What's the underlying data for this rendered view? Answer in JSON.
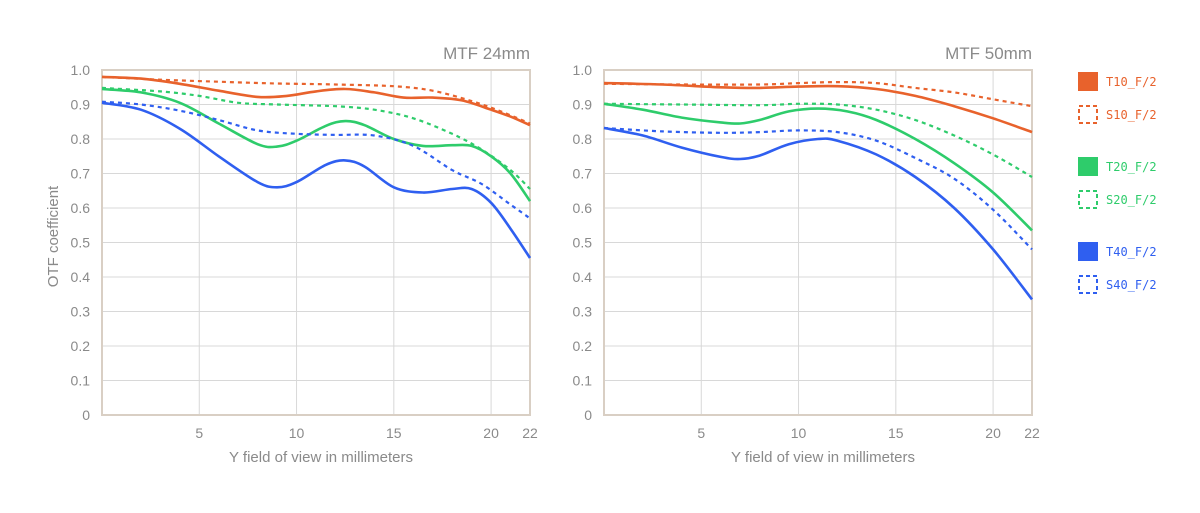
{
  "colors": {
    "orange": "#e8622c",
    "green": "#2ecc6b",
    "blue": "#2f5ff0",
    "grid": "#d8d8d8",
    "frame": "#d9cfc4",
    "text": "#8a8a8a"
  },
  "legend": [
    {
      "label": "T10_F/2",
      "color": "#e8622c",
      "style": "solid"
    },
    {
      "label": "S10_F/2",
      "color": "#e8622c",
      "style": "dashed"
    },
    {
      "label": "T20_F/2",
      "color": "#2ecc6b",
      "style": "solid"
    },
    {
      "label": "S20_F/2",
      "color": "#2ecc6b",
      "style": "dashed"
    },
    {
      "label": "T40_F/2",
      "color": "#2f5ff0",
      "style": "solid"
    },
    {
      "label": "S40_F/2",
      "color": "#2f5ff0",
      "style": "dashed"
    }
  ],
  "chart_data": [
    {
      "type": "line",
      "title": "MTF 24mm",
      "xlabel": "Y field of view in millimeters",
      "ylabel": "OTF coefficient",
      "xlim": [
        0,
        22
      ],
      "ylim": [
        0,
        1
      ],
      "xticks": [
        5,
        10,
        15,
        20,
        22
      ],
      "yticks": [
        "0",
        "0.1",
        "0.2",
        "0.3",
        "0.4",
        "0.5",
        "0.6",
        "0.7",
        "0.8",
        "0.9",
        "1.0"
      ],
      "grid": true,
      "series": [
        {
          "name": "T10_F/2",
          "color": "#e8622c",
          "style": "solid",
          "points": [
            [
              0,
              0.98
            ],
            [
              2,
              0.975
            ],
            [
              4,
              0.96
            ],
            [
              6,
              0.94
            ],
            [
              8,
              0.922
            ],
            [
              9.5,
              0.925
            ],
            [
              11,
              0.938
            ],
            [
              12.5,
              0.945
            ],
            [
              14,
              0.935
            ],
            [
              15.5,
              0.92
            ],
            [
              17,
              0.92
            ],
            [
              18.5,
              0.912
            ],
            [
              20,
              0.885
            ],
            [
              21,
              0.865
            ],
            [
              22,
              0.84
            ]
          ]
        },
        {
          "name": "S10_F/2",
          "color": "#e8622c",
          "style": "dashed",
          "points": [
            [
              0,
              0.98
            ],
            [
              3,
              0.972
            ],
            [
              6,
              0.966
            ],
            [
              9,
              0.961
            ],
            [
              12,
              0.958
            ],
            [
              15,
              0.953
            ],
            [
              17,
              0.94
            ],
            [
              19,
              0.91
            ],
            [
              20.5,
              0.88
            ],
            [
              22,
              0.845
            ]
          ]
        },
        {
          "name": "T20_F/2",
          "color": "#2ecc6b",
          "style": "solid",
          "points": [
            [
              0,
              0.945
            ],
            [
              2,
              0.935
            ],
            [
              4,
              0.905
            ],
            [
              6,
              0.845
            ],
            [
              8,
              0.785
            ],
            [
              9,
              0.778
            ],
            [
              10,
              0.795
            ],
            [
              11.5,
              0.838
            ],
            [
              12.5,
              0.852
            ],
            [
              13.5,
              0.84
            ],
            [
              15,
              0.8
            ],
            [
              16.5,
              0.78
            ],
            [
              18,
              0.782
            ],
            [
              19,
              0.78
            ],
            [
              20,
              0.75
            ],
            [
              21,
              0.7
            ],
            [
              22,
              0.62
            ]
          ]
        },
        {
          "name": "S20_F/2",
          "color": "#2ecc6b",
          "style": "dashed",
          "points": [
            [
              0,
              0.948
            ],
            [
              3,
              0.938
            ],
            [
              5,
              0.925
            ],
            [
              7,
              0.905
            ],
            [
              9,
              0.9
            ],
            [
              12,
              0.895
            ],
            [
              14,
              0.885
            ],
            [
              16,
              0.86
            ],
            [
              18,
              0.815
            ],
            [
              19.5,
              0.77
            ],
            [
              21,
              0.71
            ],
            [
              22,
              0.655
            ]
          ]
        },
        {
          "name": "T40_F/2",
          "color": "#2f5ff0",
          "style": "solid",
          "points": [
            [
              0,
              0.905
            ],
            [
              2,
              0.885
            ],
            [
              4,
              0.83
            ],
            [
              6,
              0.75
            ],
            [
              8,
              0.675
            ],
            [
              9,
              0.66
            ],
            [
              10,
              0.675
            ],
            [
              11.5,
              0.725
            ],
            [
              12.5,
              0.738
            ],
            [
              13.5,
              0.72
            ],
            [
              15,
              0.66
            ],
            [
              16.5,
              0.645
            ],
            [
              18,
              0.655
            ],
            [
              19,
              0.655
            ],
            [
              20,
              0.615
            ],
            [
              21,
              0.54
            ],
            [
              22,
              0.455
            ]
          ]
        },
        {
          "name": "S40_F/2",
          "color": "#2f5ff0",
          "style": "dashed",
          "points": [
            [
              0,
              0.908
            ],
            [
              2,
              0.9
            ],
            [
              4,
              0.882
            ],
            [
              6,
              0.855
            ],
            [
              8,
              0.825
            ],
            [
              10,
              0.815
            ],
            [
              12,
              0.812
            ],
            [
              14,
              0.81
            ],
            [
              16,
              0.78
            ],
            [
              18,
              0.71
            ],
            [
              19.5,
              0.67
            ],
            [
              21,
              0.61
            ],
            [
              22,
              0.57
            ]
          ]
        }
      ]
    },
    {
      "type": "line",
      "title": "MTF 50mm",
      "xlabel": "Y field of view in millimeters",
      "ylabel": "",
      "xlim": [
        0,
        22
      ],
      "ylim": [
        0,
        1
      ],
      "xticks": [
        5,
        10,
        15,
        20,
        22
      ],
      "yticks": [
        "0",
        "0.1",
        "0.2",
        "0.3",
        "0.4",
        "0.5",
        "0.6",
        "0.7",
        "0.8",
        "0.9",
        "1.0"
      ],
      "grid": true,
      "series": [
        {
          "name": "T10_F/2",
          "color": "#e8622c",
          "style": "solid",
          "points": [
            [
              0,
              0.962
            ],
            [
              3,
              0.958
            ],
            [
              6,
              0.95
            ],
            [
              8,
              0.948
            ],
            [
              10,
              0.952
            ],
            [
              12,
              0.953
            ],
            [
              14,
              0.945
            ],
            [
              16,
              0.925
            ],
            [
              18,
              0.895
            ],
            [
              20,
              0.86
            ],
            [
              22,
              0.82
            ]
          ]
        },
        {
          "name": "S10_F/2",
          "color": "#e8622c",
          "style": "dashed",
          "points": [
            [
              0,
              0.96
            ],
            [
              4,
              0.958
            ],
            [
              8,
              0.958
            ],
            [
              10,
              0.962
            ],
            [
              12,
              0.965
            ],
            [
              14,
              0.962
            ],
            [
              16,
              0.948
            ],
            [
              18,
              0.935
            ],
            [
              20,
              0.915
            ],
            [
              22,
              0.895
            ]
          ]
        },
        {
          "name": "T20_F/2",
          "color": "#2ecc6b",
          "style": "solid",
          "points": [
            [
              0,
              0.902
            ],
            [
              2,
              0.885
            ],
            [
              4,
              0.862
            ],
            [
              6,
              0.848
            ],
            [
              7,
              0.845
            ],
            [
              8,
              0.855
            ],
            [
              9.5,
              0.88
            ],
            [
              11,
              0.888
            ],
            [
              12.5,
              0.88
            ],
            [
              14,
              0.855
            ],
            [
              16,
              0.8
            ],
            [
              18,
              0.73
            ],
            [
              20,
              0.645
            ],
            [
              22,
              0.535
            ]
          ]
        },
        {
          "name": "S20_F/2",
          "color": "#2ecc6b",
          "style": "dashed",
          "points": [
            [
              0,
              0.902
            ],
            [
              4,
              0.9
            ],
            [
              8,
              0.898
            ],
            [
              10,
              0.902
            ],
            [
              12,
              0.9
            ],
            [
              14,
              0.885
            ],
            [
              16,
              0.855
            ],
            [
              18,
              0.81
            ],
            [
              20,
              0.755
            ],
            [
              22,
              0.69
            ]
          ]
        },
        {
          "name": "T40_F/2",
          "color": "#2f5ff0",
          "style": "solid",
          "points": [
            [
              0,
              0.832
            ],
            [
              2,
              0.81
            ],
            [
              4,
              0.775
            ],
            [
              6,
              0.748
            ],
            [
              7,
              0.742
            ],
            [
              8,
              0.752
            ],
            [
              9.5,
              0.785
            ],
            [
              11,
              0.8
            ],
            [
              12,
              0.795
            ],
            [
              14,
              0.755
            ],
            [
              16,
              0.69
            ],
            [
              18,
              0.6
            ],
            [
              20,
              0.48
            ],
            [
              22,
              0.335
            ]
          ]
        },
        {
          "name": "S40_F/2",
          "color": "#2f5ff0",
          "style": "dashed",
          "points": [
            [
              0,
              0.832
            ],
            [
              3,
              0.822
            ],
            [
              6,
              0.818
            ],
            [
              8,
              0.82
            ],
            [
              10,
              0.825
            ],
            [
              12,
              0.82
            ],
            [
              14,
              0.795
            ],
            [
              16,
              0.745
            ],
            [
              18,
              0.685
            ],
            [
              20,
              0.595
            ],
            [
              22,
              0.48
            ]
          ]
        }
      ]
    }
  ]
}
